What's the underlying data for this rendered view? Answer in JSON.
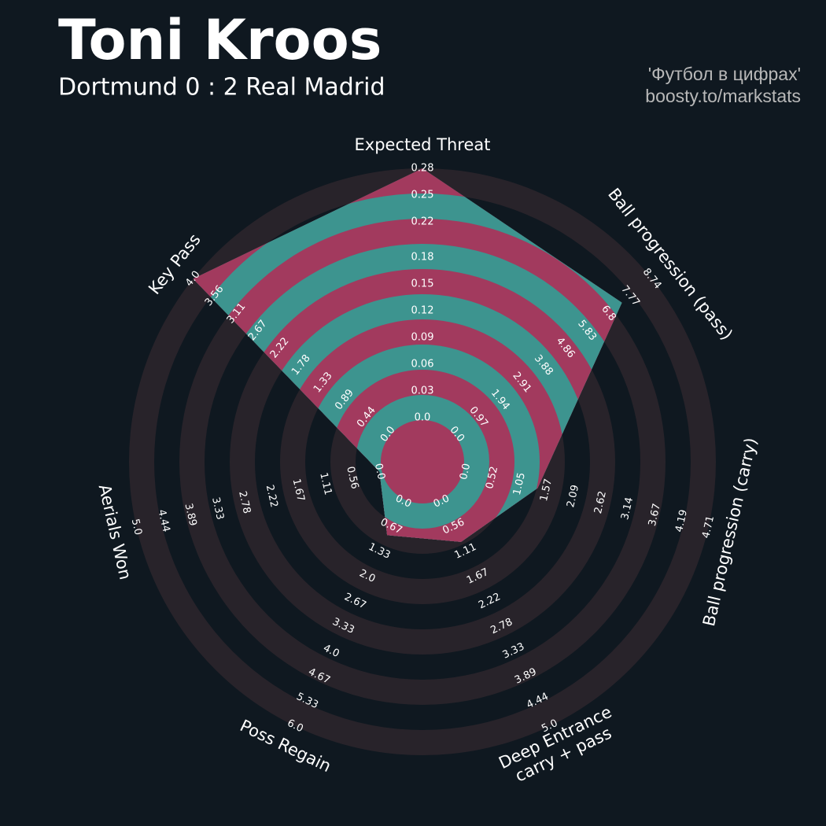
{
  "chart_data": {
    "type": "radar",
    "title": "Toni Kroos",
    "subtitle": "Dortmund 0 : 2 Real Madrid",
    "credits": [
      "'Футбол в цифрах'",
      "boosty.to/markstats"
    ],
    "color": "#3d948f",
    "alt_color": "#a23a5e",
    "axes": [
      {
        "name": "Expected Threat",
        "lim": [
          0,
          0.28
        ],
        "ticks": [
          {
            "value": 0,
            "label": "0.0"
          },
          0.03,
          0.06,
          0.09,
          0.12,
          0.15,
          0.18,
          0.22,
          0.25,
          0.28
        ]
      },
      {
        "name": "Ball progression (pass)",
        "lim": [
          0,
          8.74
        ],
        "ticks": [
          {
            "value": 0,
            "label": "0.0"
          },
          0.97,
          1.94,
          2.91,
          3.88,
          4.86,
          5.83,
          6.8,
          7.77,
          8.74
        ]
      },
      {
        "name": "Ball progression (carry)",
        "lim": [
          0,
          4.71
        ],
        "ticks": [
          {
            "value": 0,
            "label": "0.0"
          },
          0.52,
          1.05,
          1.57,
          2.09,
          2.62,
          3.14,
          3.67,
          4.19,
          4.71
        ]
      },
      {
        "name": "Deep Entrance\ncarry + pass",
        "lim": [
          0,
          5
        ],
        "ticks": [
          {
            "value": 0,
            "label": "0.0"
          },
          0.56,
          1.11,
          1.67,
          2.22,
          2.78,
          3.33,
          3.89,
          4.44,
          {
            "value": 5,
            "label": "5.0"
          }
        ]
      },
      {
        "name": "Poss Regain",
        "lim": [
          0,
          6
        ],
        "ticks": [
          {
            "value": 0,
            "label": "0.0"
          },
          0.67,
          1.33,
          {
            "value": 2,
            "label": "2.0"
          },
          2.67,
          3.33,
          {
            "value": 4,
            "label": "4.0"
          },
          4.67,
          5.33,
          {
            "value": 6,
            "label": "6.0"
          }
        ]
      },
      {
        "name": "Aerials Won",
        "lim": [
          0,
          5
        ],
        "ticks": [
          {
            "value": 0,
            "label": "0.0"
          },
          0.56,
          1.11,
          1.67,
          2.22,
          2.78,
          3.33,
          3.89,
          4.44,
          {
            "value": 5,
            "label": "5.0"
          }
        ]
      },
      {
        "name": "Key Pass",
        "lim": [
          0,
          4
        ],
        "ticks": [
          {
            "value": 0,
            "label": "0.0"
          },
          0.44,
          0.89,
          1.33,
          1.78,
          2.22,
          2.67,
          3.11,
          3.56,
          {
            "value": 4,
            "label": "4.0"
          }
        ]
      }
    ],
    "values": [
      0.28,
      7.4,
      1.4,
      0.9,
      0.9,
      0,
      4
    ]
  }
}
